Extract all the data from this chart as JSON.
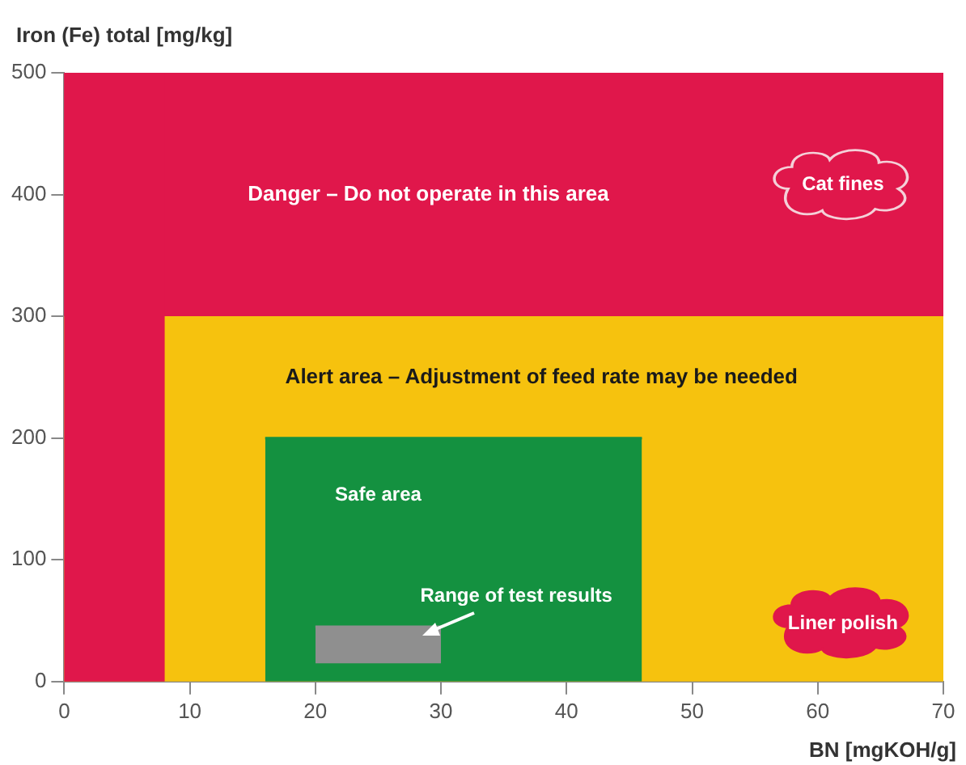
{
  "chart_data": {
    "type": "area",
    "xlabel": "BN [mgKOH/g]",
    "ylabel": "Iron (Fe) total [mg/kg]",
    "xlim": [
      0,
      70
    ],
    "xticks": [
      0,
      10,
      20,
      30,
      40,
      50,
      60,
      70
    ],
    "ylim": [
      0,
      500
    ],
    "yticks": [
      0,
      100,
      200,
      300,
      400,
      500
    ],
    "grid": false,
    "legend": false,
    "bands": [
      {
        "axis": "y",
        "from": 0,
        "to": 300,
        "color": "#f6c20e",
        "label": "Alert area – Adjustment of feed rate may be needed"
      },
      {
        "axis": "y",
        "from": 300,
        "to": 500,
        "color": "#e0174b",
        "label": "Danger – Do not operate in this area"
      },
      {
        "axis": "x",
        "from": 0,
        "to": 8,
        "color": "#e0174b"
      }
    ],
    "series": [
      {
        "color": "#149140",
        "x": [
          16,
          46
        ],
        "values": [
          200,
          200
        ]
      },
      {
        "type": "line",
        "color": "#8f8f8f",
        "x": [
          20,
          30
        ],
        "values": [
          45,
          45
        ],
        "lower": [
          15,
          15
        ],
        "upper": [
          45,
          45
        ]
      }
    ],
    "annotations": [
      "Cat fines",
      "Safe area",
      "Range of test results",
      "Liner polish"
    ]
  }
}
